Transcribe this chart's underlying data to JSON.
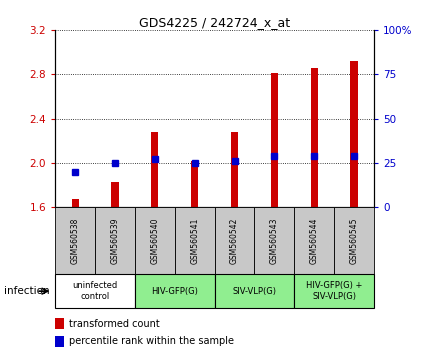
{
  "title": "GDS4225 / 242724_x_at",
  "samples": [
    "GSM560538",
    "GSM560539",
    "GSM560540",
    "GSM560541",
    "GSM560542",
    "GSM560543",
    "GSM560544",
    "GSM560545"
  ],
  "transformed_counts": [
    1.67,
    1.83,
    2.28,
    2.02,
    2.28,
    2.81,
    2.86,
    2.92
  ],
  "percentile_ranks": [
    20,
    25,
    27,
    25,
    26,
    29,
    29,
    29
  ],
  "ylim_left": [
    1.6,
    3.2
  ],
  "ylim_right": [
    0,
    100
  ],
  "yticks_left": [
    1.6,
    2.0,
    2.4,
    2.8,
    3.2
  ],
  "yticks_right": [
    0,
    25,
    50,
    75,
    100
  ],
  "ytick_labels_left": [
    "1.6",
    "2.0",
    "2.4",
    "2.8",
    "3.2"
  ],
  "ytick_labels_right": [
    "0",
    "25",
    "50",
    "75",
    "100%"
  ],
  "groups": [
    {
      "label": "uninfected\ncontrol",
      "start": 0,
      "end": 2,
      "color": "#ffffff"
    },
    {
      "label": "HIV-GFP(G)",
      "start": 2,
      "end": 4,
      "color": "#90EE90"
    },
    {
      "label": "SIV-VLP(G)",
      "start": 4,
      "end": 6,
      "color": "#90EE90"
    },
    {
      "label": "HIV-GFP(G) +\nSIV-VLP(G)",
      "start": 6,
      "end": 8,
      "color": "#90EE90"
    }
  ],
  "bar_color": "#CC0000",
  "percentile_color": "#0000CC",
  "sample_bg_color": "#C8C8C8",
  "grid_color": "#000000",
  "bar_width": 0.18,
  "percentile_marker_size": 4,
  "infection_label": "infection",
  "legend_items": [
    {
      "label": "transformed count",
      "color": "#CC0000"
    },
    {
      "label": "percentile rank within the sample",
      "color": "#0000CC"
    }
  ]
}
